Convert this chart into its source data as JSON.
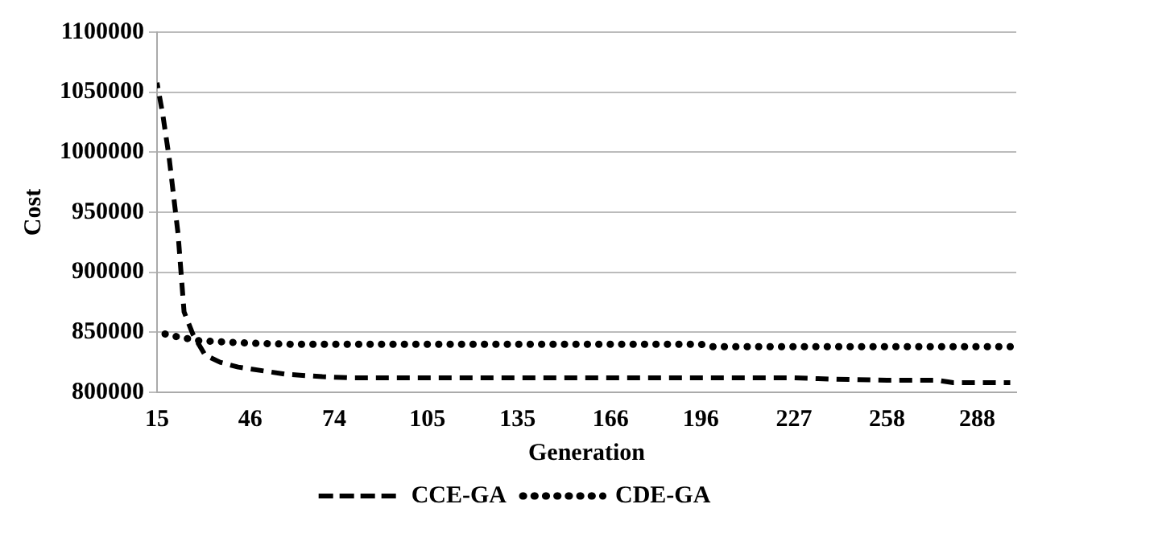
{
  "chart_data": {
    "type": "line",
    "xlabel": "Generation",
    "ylabel": "Cost",
    "xlim": [
      15,
      301
    ],
    "xticks": [
      15,
      46,
      74,
      105,
      135,
      166,
      196,
      227,
      258,
      288
    ],
    "ylim": [
      800000,
      1100000
    ],
    "yticks": [
      800000,
      850000,
      900000,
      950000,
      1000000,
      1050000,
      1100000
    ],
    "grid": "y",
    "legend": "bottom",
    "series": [
      {
        "name": "CCE-GA",
        "color": "#000000",
        "line_style": "dashed",
        "x": [
          15,
          17,
          19,
          22,
          24,
          27,
          31,
          36,
          42,
          50,
          58,
          70,
          80,
          120,
          196,
          200,
          227,
          240,
          258,
          275,
          280,
          299
        ],
        "values": [
          1058000,
          1030000,
          996000,
          932000,
          867000,
          848000,
          831000,
          825000,
          821000,
          818000,
          815000,
          813000,
          812000,
          812000,
          812000,
          812000,
          812000,
          811000,
          810000,
          810000,
          808000,
          808000
        ]
      },
      {
        "name": "CDE-GA",
        "color": "#000000",
        "line_style": "dotted",
        "x": [
          15,
          18,
          29,
          45,
          60,
          196,
          200,
          299
        ],
        "values": [
          854000,
          848000,
          843000,
          841000,
          840000,
          840000,
          838000,
          838000
        ]
      }
    ]
  }
}
